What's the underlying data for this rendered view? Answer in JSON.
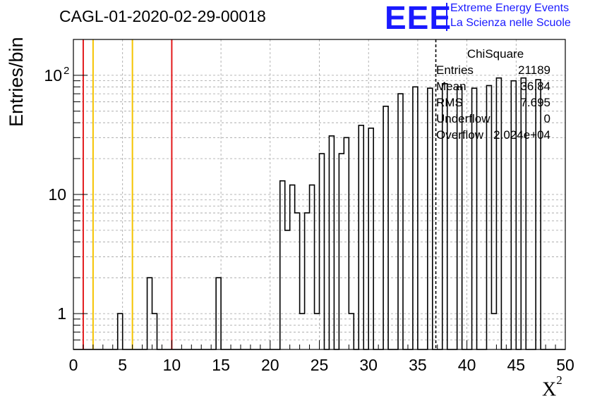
{
  "title": "CAGL-01-2020-02-29-00018",
  "logo": {
    "mark": "EEE",
    "line1": "Extreme Energy Events",
    "line2": "La Scienza nelle Scuole"
  },
  "colors": {
    "histogram": "#000000",
    "red_line": "#e31a1c",
    "yellow_line": "#f5c400",
    "logo": "#1a1aff",
    "grid": "#a0a0a0"
  },
  "stats": {
    "title": "ChiSquare",
    "rows": [
      {
        "key": "Entries",
        "value": "21189"
      },
      {
        "key": "Mean",
        "value": "36.84"
      },
      {
        "key": "RMS",
        "value": "7.695"
      },
      {
        "key": "Underflow",
        "value": "0"
      },
      {
        "key": "Overflow",
        "value": "2.024e+04"
      }
    ]
  },
  "chart_data": {
    "type": "bar",
    "histogram": true,
    "title": "CAGL-01-2020-02-29-00018",
    "xlabel": "X",
    "xlabel_superscript": "2",
    "ylabel": "Entries/bin",
    "xlim": [
      0,
      50
    ],
    "ylim": [
      0.5,
      200
    ],
    "yscale": "log",
    "grid": true,
    "legend": "top-right stats box",
    "bin_width": 0.5,
    "x_ticks": [
      "0",
      "5",
      "10",
      "15",
      "20",
      "25",
      "30",
      "35",
      "40",
      "45",
      "50"
    ],
    "y_ticks": [
      {
        "value": 1,
        "label": "1"
      },
      {
        "value": 10,
        "label": "10"
      },
      {
        "value": 100,
        "label": "10",
        "exponent": "2"
      }
    ],
    "bins": [
      {
        "x": 4.5,
        "count": 1
      },
      {
        "x": 7.5,
        "count": 2
      },
      {
        "x": 8.0,
        "count": 1
      },
      {
        "x": 14.5,
        "count": 2
      },
      {
        "x": 21.0,
        "count": 13
      },
      {
        "x": 21.5,
        "count": 5
      },
      {
        "x": 22.0,
        "count": 12
      },
      {
        "x": 22.5,
        "count": 7
      },
      {
        "x": 23.0,
        "count": 1
      },
      {
        "x": 23.5,
        "count": 7
      },
      {
        "x": 24.0,
        "count": 12
      },
      {
        "x": 24.5,
        "count": 1
      },
      {
        "x": 25.0,
        "count": 22
      },
      {
        "x": 26.0,
        "count": 31
      },
      {
        "x": 27.0,
        "count": 22
      },
      {
        "x": 27.5,
        "count": 30
      },
      {
        "x": 28.0,
        "count": 1
      },
      {
        "x": 29.0,
        "count": 38
      },
      {
        "x": 30.0,
        "count": 36
      },
      {
        "x": 31.5,
        "count": 55
      },
      {
        "x": 33.0,
        "count": 70
      },
      {
        "x": 34.5,
        "count": 80
      },
      {
        "x": 36.0,
        "count": 78
      },
      {
        "x": 37.5,
        "count": 85
      },
      {
        "x": 39.0,
        "count": 80
      },
      {
        "x": 40.5,
        "count": 78
      },
      {
        "x": 42.0,
        "count": 82
      },
      {
        "x": 42.5,
        "count": 1
      },
      {
        "x": 43.0,
        "count": 95
      },
      {
        "x": 44.5,
        "count": 90
      },
      {
        "x": 45.5,
        "count": 95
      },
      {
        "x": 47.0,
        "count": 92
      }
    ],
    "vertical_lines": [
      {
        "x": 1,
        "color": "red"
      },
      {
        "x": 2,
        "color": "yellow"
      },
      {
        "x": 6,
        "color": "yellow"
      },
      {
        "x": 10,
        "color": "red"
      },
      {
        "x": 36.84,
        "color": "black",
        "style": "dashed"
      }
    ]
  }
}
